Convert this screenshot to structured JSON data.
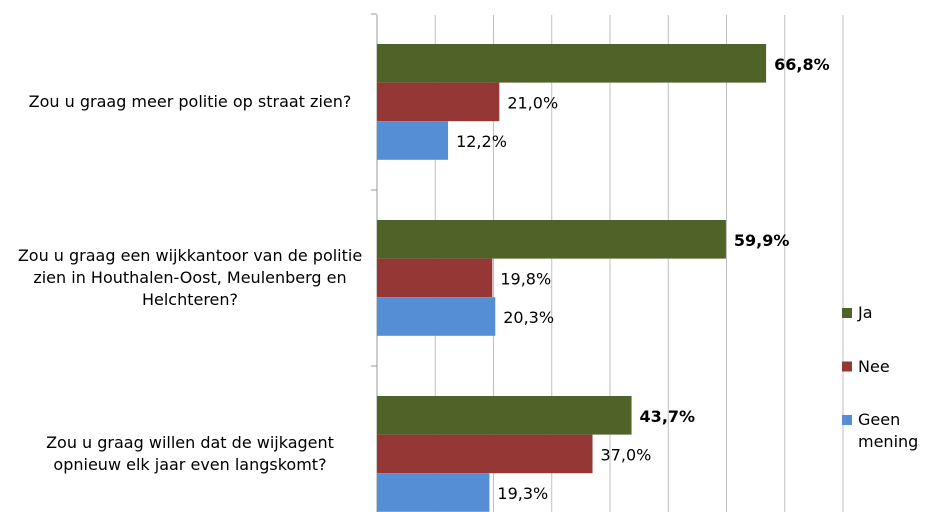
{
  "chart_data": {
    "type": "bar",
    "orientation": "horizontal",
    "categories": [
      "Zou u graag meer politie op straat zien?",
      "Zou u graag een wijkkantoor van de politie zien in Houthalen-Oost, Meulenberg en Helchteren?",
      "Zou u graag willen dat de wijkagent opnieuw elk jaar even langskomt?"
    ],
    "series": [
      {
        "name": "Ja",
        "color": "#4f6228",
        "values": [
          66.8,
          59.9,
          43.7
        ],
        "value_labels": [
          "66,8%",
          "59,9%",
          "43,7%"
        ],
        "bold": true
      },
      {
        "name": "Nee",
        "color": "#953735",
        "values": [
          21.0,
          19.8,
          37.0
        ],
        "value_labels": [
          "21,0%",
          "19,8%",
          "37,0%"
        ]
      },
      {
        "name": "Geen mening",
        "color": "#558ed5",
        "values": [
          12.2,
          20.3,
          19.3
        ],
        "value_labels": [
          "12,2%",
          "20,3%",
          "19,3%"
        ]
      }
    ],
    "xlim": [
      0,
      80
    ],
    "xticks": [
      0,
      10,
      20,
      30,
      40,
      50,
      60,
      70,
      80
    ],
    "grid": true,
    "legend": "right"
  }
}
